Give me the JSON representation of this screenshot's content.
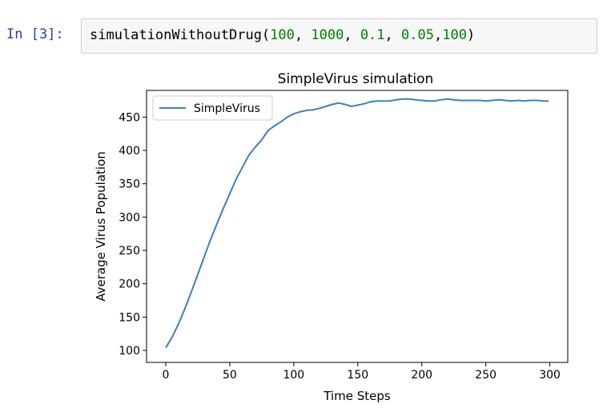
{
  "cell": {
    "prompt": "In [3]:",
    "code": {
      "func": "simulationWithoutDrug(",
      "args": [
        "100",
        "1000",
        "0.1",
        "0.05",
        "100"
      ],
      "close": ")"
    }
  },
  "chart_data": {
    "type": "line",
    "title": "SimpleVirus simulation",
    "xlabel": "Time Steps",
    "ylabel": "Average Virus Population",
    "xlim": [
      -15,
      314
    ],
    "ylim": [
      82,
      490
    ],
    "xticks": [
      0,
      50,
      100,
      150,
      200,
      250,
      300
    ],
    "yticks": [
      100,
      150,
      200,
      250,
      300,
      350,
      400,
      450
    ],
    "grid": false,
    "legend": "top-left",
    "series": [
      {
        "name": "SimpleVirus",
        "color": "#3f7fbf",
        "x": [
          0,
          5,
          10,
          15,
          20,
          25,
          30,
          35,
          40,
          45,
          50,
          55,
          60,
          65,
          70,
          75,
          80,
          85,
          90,
          95,
          100,
          105,
          110,
          115,
          120,
          125,
          130,
          135,
          140,
          145,
          150,
          155,
          160,
          165,
          170,
          175,
          180,
          185,
          190,
          195,
          200,
          205,
          210,
          215,
          220,
          225,
          230,
          235,
          240,
          245,
          250,
          255,
          260,
          265,
          270,
          275,
          280,
          285,
          290,
          295,
          299
        ],
        "y": [
          104,
          120,
          140,
          163,
          188,
          214,
          240,
          266,
          290,
          313,
          335,
          357,
          375,
          393,
          405,
          416,
          430,
          437,
          443,
          450,
          455,
          458,
          460,
          461,
          463,
          466,
          469,
          471,
          469,
          466,
          468,
          470,
          473,
          474,
          474,
          474,
          476,
          477,
          477,
          476,
          475,
          474,
          474,
          476,
          477,
          476,
          475,
          475,
          475,
          475,
          474,
          475,
          476,
          475,
          474,
          475,
          474,
          475,
          475,
          474,
          474
        ]
      }
    ]
  }
}
